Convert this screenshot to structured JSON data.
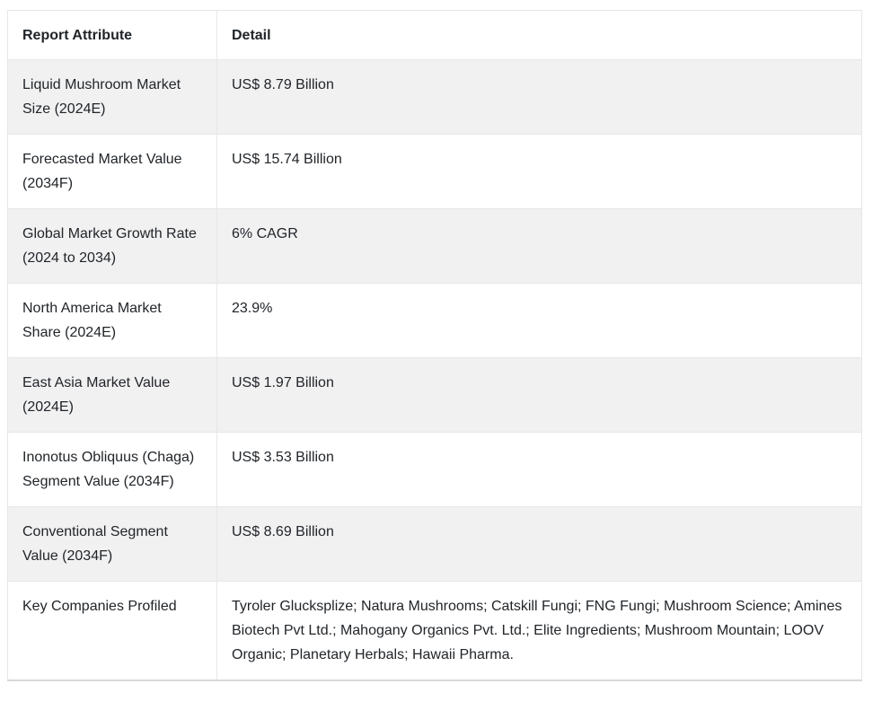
{
  "colors": {
    "background": "#ffffff",
    "text": "#212529",
    "row_shade": "#f1f1f2",
    "border": "#e0e0e0"
  },
  "table": {
    "columns": [
      {
        "label": "Report Attribute"
      },
      {
        "label": "Detail"
      }
    ],
    "rows": [
      {
        "attribute": "Liquid Mushroom Market Size (2024E)",
        "detail": "US$ 8.79 Billion"
      },
      {
        "attribute": "Forecasted Market Value (2034F)",
        "detail": "US$ 15.74 Billion"
      },
      {
        "attribute": "Global Market Growth Rate (2024 to 2034)",
        "detail": "6% CAGR"
      },
      {
        "attribute": "North America Market Share (2024E)",
        "detail": "23.9%"
      },
      {
        "attribute": "East Asia Market Value (2024E)",
        "detail": "US$ 1.97 Billion"
      },
      {
        "attribute": "Inonotus Obliquus (Chaga) Segment Value (2034F)",
        "detail": "US$ 3.53 Billion"
      },
      {
        "attribute": "Conventional Segment Value (2034F)",
        "detail": "US$ 8.69 Billion"
      },
      {
        "attribute": "Key Companies Profiled",
        "detail": "Tyroler Glucksplize; Natura Mushrooms; Catskill Fungi; FNG Fungi; Mushroom Science; Amines Biotech Pvt Ltd.; Mahogany Organics Pvt. Ltd.; Elite Ingredients; Mushroom Mountain; LOOV Organic; Planetary Herbals; Hawaii Pharma."
      }
    ]
  },
  "chart_data": {
    "type": "table",
    "title": "",
    "columns": [
      "Report Attribute",
      "Detail"
    ],
    "rows": [
      [
        "Liquid Mushroom Market Size (2024E)",
        "US$ 8.79 Billion"
      ],
      [
        "Forecasted Market Value (2034F)",
        "US$ 15.74 Billion"
      ],
      [
        "Global Market Growth Rate (2024 to 2034)",
        "6% CAGR"
      ],
      [
        "North America Market Share (2024E)",
        "23.9%"
      ],
      [
        "East Asia Market Value (2024E)",
        "US$ 1.97 Billion"
      ],
      [
        "Inonotus Obliquus (Chaga) Segment Value (2034F)",
        "US$ 3.53 Billion"
      ],
      [
        "Conventional Segment Value (2034F)",
        "US$ 8.69 Billion"
      ],
      [
        "Key Companies Profiled",
        "Tyroler Glucksplize; Natura Mushrooms; Catskill Fungi; FNG Fungi; Mushroom Science; Amines Biotech Pvt Ltd.; Mahogany Organics Pvt. Ltd.; Elite Ingredients; Mushroom Mountain; LOOV Organic; Planetary Herbals; Hawaii Pharma."
      ]
    ]
  }
}
